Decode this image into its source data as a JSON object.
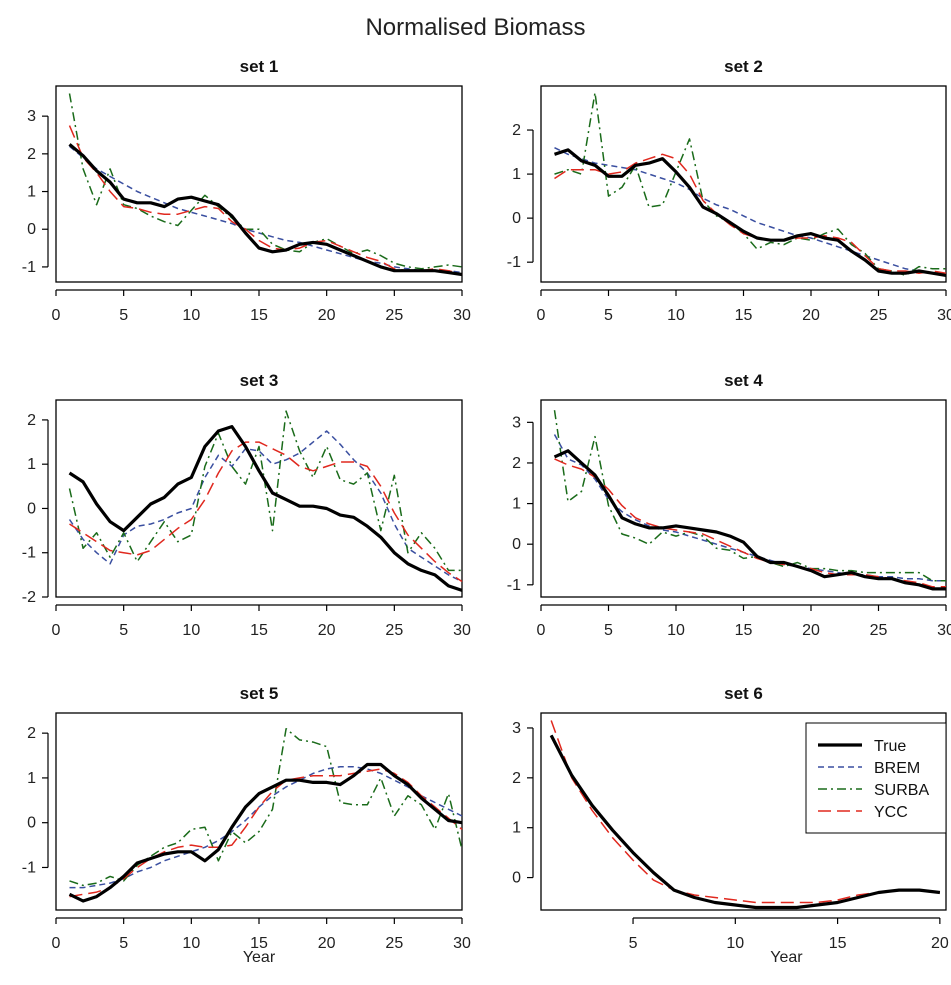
{
  "title": "Normalised Biomass",
  "legend": {
    "placement": "top-right of set 6",
    "items": [
      {
        "label": "True",
        "color": "#000000",
        "dash": "solid"
      },
      {
        "label": "BREM",
        "color": "#3a4fa0",
        "dash": "dashed"
      },
      {
        "label": "SURBA",
        "color": "#1a6b1a",
        "dash": "dashdot"
      },
      {
        "label": "YCC",
        "color": "#e0281e",
        "dash": "longdash"
      }
    ]
  },
  "chart_data": [
    {
      "type": "line",
      "title": "set 1",
      "xlabel": "",
      "ylabel": "",
      "xlim": [
        0,
        30
      ],
      "ylim": [
        -1.4,
        3.8
      ],
      "xticks": [
        0,
        5,
        10,
        15,
        20,
        25,
        30
      ],
      "yticks": [
        -1,
        0,
        1,
        2,
        3
      ],
      "x": [
        1,
        2,
        3,
        4,
        5,
        6,
        7,
        8,
        9,
        10,
        11,
        12,
        13,
        14,
        15,
        16,
        17,
        18,
        19,
        20,
        21,
        22,
        23,
        24,
        25,
        26,
        27,
        28,
        29,
        30
      ],
      "series": [
        {
          "name": "True",
          "values": [
            2.25,
            1.95,
            1.55,
            1.25,
            0.8,
            0.7,
            0.7,
            0.6,
            0.8,
            0.85,
            0.75,
            0.65,
            0.35,
            -0.1,
            -0.5,
            -0.6,
            -0.55,
            -0.4,
            -0.35,
            -0.4,
            -0.55,
            -0.7,
            -0.85,
            -1.0,
            -1.1,
            -1.1,
            -1.1,
            -1.1,
            -1.15,
            -1.2
          ]
        },
        {
          "name": "BREM",
          "values": [
            2.2,
            1.9,
            1.6,
            1.4,
            1.2,
            1.0,
            0.85,
            0.7,
            0.55,
            0.45,
            0.35,
            0.25,
            0.15,
            0.0,
            -0.1,
            -0.2,
            -0.3,
            -0.35,
            -0.45,
            -0.55,
            -0.65,
            -0.75,
            -0.85,
            -0.9,
            -1.0,
            -1.05,
            -1.1,
            -1.1,
            -1.1,
            -1.15
          ]
        },
        {
          "name": "SURBA",
          "values": [
            3.6,
            1.6,
            0.65,
            1.6,
            0.65,
            0.55,
            0.35,
            0.2,
            0.1,
            0.5,
            0.9,
            0.6,
            0.3,
            0.0,
            0.0,
            -0.4,
            -0.55,
            -0.6,
            -0.35,
            -0.25,
            -0.45,
            -0.65,
            -0.55,
            -0.7,
            -0.9,
            -1.0,
            -1.05,
            -1.0,
            -0.95,
            -1.0
          ]
        },
        {
          "name": "YCC",
          "values": [
            2.75,
            1.9,
            1.5,
            1.0,
            0.6,
            0.55,
            0.45,
            0.4,
            0.4,
            0.5,
            0.6,
            0.55,
            0.2,
            0.0,
            -0.3,
            -0.5,
            -0.55,
            -0.5,
            -0.35,
            -0.3,
            -0.45,
            -0.6,
            -0.75,
            -0.85,
            -1.05,
            -1.1,
            -1.1,
            -1.05,
            -1.1,
            -1.2
          ]
        }
      ]
    },
    {
      "type": "line",
      "title": "set 2",
      "xlabel": "",
      "ylabel": "",
      "xlim": [
        0,
        30
      ],
      "ylim": [
        -1.45,
        3.0
      ],
      "xticks": [
        0,
        5,
        10,
        15,
        20,
        25,
        30
      ],
      "yticks": [
        -1,
        0,
        1,
        2
      ],
      "x": [
        1,
        2,
        3,
        4,
        5,
        6,
        7,
        8,
        9,
        10,
        11,
        12,
        13,
        14,
        15,
        16,
        17,
        18,
        19,
        20,
        21,
        22,
        23,
        24,
        25,
        26,
        27,
        28,
        29,
        30
      ],
      "series": [
        {
          "name": "True",
          "values": [
            1.45,
            1.55,
            1.3,
            1.2,
            0.95,
            0.95,
            1.2,
            1.25,
            1.35,
            1.05,
            0.7,
            0.25,
            0.1,
            -0.1,
            -0.3,
            -0.45,
            -0.5,
            -0.5,
            -0.4,
            -0.35,
            -0.45,
            -0.5,
            -0.75,
            -0.95,
            -1.2,
            -1.25,
            -1.25,
            -1.2,
            -1.25,
            -1.3
          ]
        },
        {
          "name": "BREM",
          "values": [
            1.6,
            1.45,
            1.35,
            1.25,
            1.2,
            1.15,
            1.1,
            1.0,
            0.9,
            0.8,
            0.65,
            0.45,
            0.3,
            0.2,
            0.05,
            -0.1,
            -0.2,
            -0.3,
            -0.4,
            -0.45,
            -0.55,
            -0.65,
            -0.75,
            -0.85,
            -0.95,
            -1.05,
            -1.15,
            -1.2,
            -1.25,
            -1.3
          ]
        },
        {
          "name": "SURBA",
          "values": [
            1.0,
            1.1,
            1.0,
            2.85,
            0.5,
            0.7,
            1.2,
            0.25,
            0.3,
            1.05,
            1.8,
            0.4,
            0.05,
            -0.1,
            -0.35,
            -0.7,
            -0.55,
            -0.6,
            -0.45,
            -0.5,
            -0.35,
            -0.25,
            -0.6,
            -0.8,
            -1.15,
            -1.2,
            -1.3,
            -1.1,
            -1.15,
            -1.15
          ]
        },
        {
          "name": "YCC",
          "values": [
            0.9,
            1.1,
            1.1,
            1.1,
            1.0,
            1.05,
            1.25,
            1.35,
            1.45,
            1.35,
            1.0,
            0.4,
            0.1,
            -0.15,
            -0.35,
            -0.45,
            -0.5,
            -0.5,
            -0.45,
            -0.45,
            -0.4,
            -0.45,
            -0.55,
            -0.85,
            -1.15,
            -1.2,
            -1.2,
            -1.25,
            -1.2,
            -1.25
          ]
        }
      ]
    },
    {
      "type": "line",
      "title": "set 3",
      "xlabel": "",
      "ylabel": "",
      "xlim": [
        0,
        30
      ],
      "ylim": [
        -2.0,
        2.45
      ],
      "xticks": [
        0,
        5,
        10,
        15,
        20,
        25,
        30
      ],
      "yticks": [
        -2,
        -1,
        0,
        1,
        2
      ],
      "x": [
        1,
        2,
        3,
        4,
        5,
        6,
        7,
        8,
        9,
        10,
        11,
        12,
        13,
        14,
        15,
        16,
        17,
        18,
        19,
        20,
        21,
        22,
        23,
        24,
        25,
        26,
        27,
        28,
        29,
        30
      ],
      "series": [
        {
          "name": "True",
          "values": [
            0.8,
            0.6,
            0.1,
            -0.3,
            -0.5,
            -0.2,
            0.1,
            0.25,
            0.55,
            0.7,
            1.4,
            1.75,
            1.85,
            1.4,
            0.85,
            0.35,
            0.2,
            0.05,
            0.05,
            0.0,
            -0.15,
            -0.2,
            -0.4,
            -0.65,
            -1.0,
            -1.25,
            -1.4,
            -1.5,
            -1.75,
            -1.85
          ]
        },
        {
          "name": "BREM",
          "values": [
            -0.25,
            -0.7,
            -1.0,
            -1.25,
            -0.6,
            -0.4,
            -0.35,
            -0.25,
            -0.1,
            0.0,
            0.7,
            1.2,
            0.95,
            1.35,
            1.3,
            1.0,
            1.1,
            1.25,
            1.5,
            1.75,
            1.45,
            1.1,
            0.8,
            0.35,
            -0.35,
            -0.9,
            -1.1,
            -1.3,
            -1.5,
            -1.65
          ]
        },
        {
          "name": "SURBA",
          "values": [
            0.45,
            -0.9,
            -0.55,
            -1.1,
            -0.55,
            -1.2,
            -0.75,
            -0.3,
            -0.75,
            -0.6,
            0.95,
            1.7,
            0.95,
            0.55,
            1.4,
            -0.5,
            2.2,
            1.3,
            0.7,
            1.4,
            0.65,
            0.55,
            0.8,
            -0.5,
            0.75,
            -1.0,
            -0.55,
            -0.9,
            -1.4,
            -1.4
          ]
        },
        {
          "name": "YCC",
          "values": [
            -0.35,
            -0.55,
            -0.75,
            -0.95,
            -1.0,
            -1.05,
            -0.95,
            -0.7,
            -0.45,
            -0.25,
            0.2,
            0.8,
            1.3,
            1.5,
            1.5,
            1.35,
            1.2,
            0.95,
            0.85,
            0.95,
            1.05,
            1.05,
            0.95,
            0.5,
            -0.1,
            -0.6,
            -0.9,
            -1.2,
            -1.45,
            -1.65
          ]
        }
      ]
    },
    {
      "type": "line",
      "title": "set 4",
      "xlabel": "",
      "ylabel": "",
      "xlim": [
        0,
        30
      ],
      "ylim": [
        -1.3,
        3.55
      ],
      "xticks": [
        0,
        5,
        10,
        15,
        20,
        25,
        30
      ],
      "yticks": [
        -1,
        0,
        1,
        2,
        3
      ],
      "x": [
        1,
        2,
        3,
        4,
        5,
        6,
        7,
        8,
        9,
        10,
        11,
        12,
        13,
        14,
        15,
        16,
        17,
        18,
        19,
        20,
        21,
        22,
        23,
        24,
        25,
        26,
        27,
        28,
        29,
        30
      ],
      "series": [
        {
          "name": "True",
          "values": [
            2.15,
            2.3,
            2.0,
            1.7,
            1.2,
            0.65,
            0.5,
            0.4,
            0.4,
            0.45,
            0.4,
            0.35,
            0.3,
            0.2,
            0.05,
            -0.3,
            -0.45,
            -0.45,
            -0.55,
            -0.65,
            -0.8,
            -0.75,
            -0.7,
            -0.8,
            -0.85,
            -0.85,
            -0.95,
            -1.0,
            -1.1,
            -1.1
          ]
        },
        {
          "name": "BREM",
          "values": [
            2.7,
            2.1,
            1.95,
            1.6,
            1.1,
            0.8,
            0.6,
            0.45,
            0.35,
            0.3,
            0.2,
            0.1,
            0.0,
            -0.1,
            -0.2,
            -0.3,
            -0.4,
            -0.5,
            -0.55,
            -0.6,
            -0.65,
            -0.7,
            -0.75,
            -0.75,
            -0.8,
            -0.8,
            -0.85,
            -0.85,
            -0.9,
            -0.9
          ]
        },
        {
          "name": "SURBA",
          "values": [
            3.3,
            1.05,
            1.3,
            2.65,
            0.95,
            0.25,
            0.15,
            0.0,
            0.3,
            0.2,
            0.3,
            0.2,
            -0.1,
            -0.15,
            -0.35,
            -0.3,
            -0.45,
            -0.55,
            -0.45,
            -0.6,
            -0.6,
            -0.65,
            -0.65,
            -0.7,
            -0.7,
            -0.7,
            -0.7,
            -0.7,
            -0.9,
            -0.9
          ]
        },
        {
          "name": "YCC",
          "values": [
            2.1,
            1.95,
            1.85,
            1.65,
            1.35,
            0.95,
            0.65,
            0.5,
            0.4,
            0.35,
            0.3,
            0.25,
            0.1,
            -0.05,
            -0.2,
            -0.35,
            -0.45,
            -0.5,
            -0.55,
            -0.6,
            -0.7,
            -0.75,
            -0.75,
            -0.75,
            -0.8,
            -0.85,
            -0.9,
            -0.95,
            -1.05,
            -1.05
          ]
        }
      ]
    },
    {
      "type": "line",
      "title": "set 5",
      "xlabel": "Year",
      "ylabel": "",
      "xlim": [
        0,
        30
      ],
      "ylim": [
        -1.95,
        2.45
      ],
      "xticks": [
        0,
        5,
        10,
        15,
        20,
        25,
        30
      ],
      "yticks": [
        -1,
        0,
        1,
        2
      ],
      "x": [
        1,
        2,
        3,
        4,
        5,
        6,
        7,
        8,
        9,
        10,
        11,
        12,
        13,
        14,
        15,
        16,
        17,
        18,
        19,
        20,
        21,
        22,
        23,
        24,
        25,
        26,
        27,
        28,
        29,
        30
      ],
      "series": [
        {
          "name": "True",
          "values": [
            -1.6,
            -1.75,
            -1.65,
            -1.45,
            -1.2,
            -0.9,
            -0.8,
            -0.7,
            -0.65,
            -0.65,
            -0.85,
            -0.6,
            -0.1,
            0.35,
            0.65,
            0.8,
            0.95,
            0.95,
            0.9,
            0.9,
            0.85,
            1.05,
            1.3,
            1.3,
            1.05,
            0.85,
            0.55,
            0.3,
            0.05,
            0.0
          ]
        },
        {
          "name": "BREM",
          "values": [
            -1.45,
            -1.45,
            -1.4,
            -1.35,
            -1.25,
            -1.1,
            -1.0,
            -0.85,
            -0.75,
            -0.65,
            -0.55,
            -0.4,
            -0.2,
            0.05,
            0.35,
            0.6,
            0.8,
            0.95,
            1.1,
            1.2,
            1.25,
            1.25,
            1.2,
            1.1,
            0.95,
            0.8,
            0.6,
            0.45,
            0.3,
            0.15
          ]
        },
        {
          "name": "SURBA",
          "values": [
            -1.3,
            -1.4,
            -1.35,
            -1.2,
            -1.3,
            -0.95,
            -0.75,
            -0.55,
            -0.45,
            -0.15,
            -0.1,
            -0.85,
            -0.2,
            -0.45,
            -0.2,
            0.3,
            2.1,
            1.85,
            1.8,
            1.7,
            0.45,
            0.4,
            0.4,
            1.0,
            0.15,
            0.6,
            0.4,
            -0.15,
            0.65,
            -0.6
          ]
        },
        {
          "name": "YCC",
          "values": [
            -1.65,
            -1.6,
            -1.55,
            -1.45,
            -1.25,
            -1.0,
            -0.8,
            -0.65,
            -0.55,
            -0.5,
            -0.55,
            -0.55,
            -0.5,
            -0.1,
            0.35,
            0.7,
            0.95,
            1.0,
            1.05,
            1.05,
            1.05,
            1.1,
            1.15,
            1.2,
            1.1,
            0.9,
            0.6,
            0.35,
            0.1,
            -0.15
          ]
        }
      ]
    },
    {
      "type": "line",
      "title": "set 6",
      "xlabel": "Year",
      "ylabel": "",
      "xlim": [
        0.5,
        20.3
      ],
      "ylim": [
        -0.65,
        3.3
      ],
      "xticks": [
        5,
        10,
        15,
        20
      ],
      "yticks": [
        0,
        1,
        2,
        3
      ],
      "x": [
        1,
        2,
        3,
        4,
        5,
        6,
        7,
        8,
        9,
        10,
        11,
        12,
        13,
        14,
        15,
        16,
        17,
        18,
        19,
        20
      ],
      "series": [
        {
          "name": "True",
          "values": [
            2.85,
            2.05,
            1.45,
            0.95,
            0.5,
            0.1,
            -0.25,
            -0.4,
            -0.5,
            -0.55,
            -0.6,
            -0.6,
            -0.6,
            -0.55,
            -0.5,
            -0.4,
            -0.3,
            -0.25,
            -0.25,
            -0.3
          ]
        },
        {
          "name": "BREM",
          "values": [
            2.85,
            2.05,
            1.45,
            0.95,
            0.5,
            0.1,
            -0.25,
            -0.4,
            -0.5,
            -0.55,
            -0.6,
            -0.6,
            -0.6,
            -0.55,
            -0.5,
            -0.4,
            -0.3,
            -0.25,
            -0.25,
            -0.3
          ]
        },
        {
          "name": "SURBA",
          "values": [
            2.85,
            2.05,
            1.45,
            0.95,
            0.5,
            0.1,
            -0.25,
            -0.4,
            -0.5,
            -0.55,
            -0.6,
            -0.6,
            -0.6,
            -0.55,
            -0.5,
            -0.4,
            -0.3,
            -0.25,
            -0.25,
            -0.3
          ]
        },
        {
          "name": "YCC",
          "values": [
            3.15,
            2.0,
            1.35,
            0.8,
            0.35,
            -0.05,
            -0.25,
            -0.35,
            -0.4,
            -0.45,
            -0.5,
            -0.5,
            -0.5,
            -0.5,
            -0.45,
            -0.35,
            -0.3,
            -0.25,
            -0.25,
            -0.3
          ]
        }
      ]
    }
  ]
}
